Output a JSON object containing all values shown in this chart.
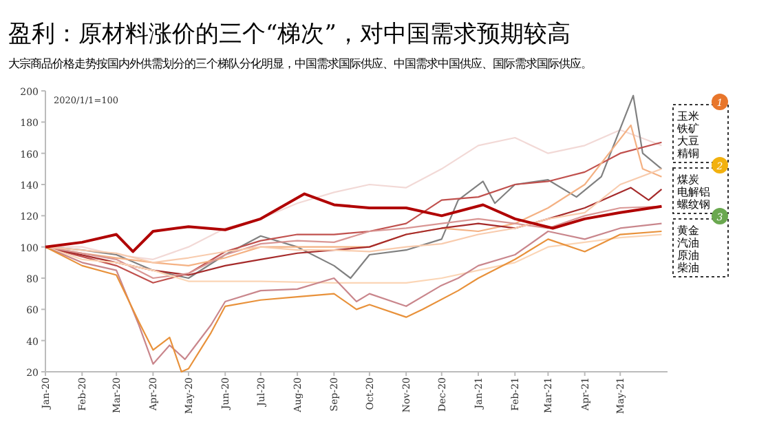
{
  "chart_data": {
    "type": "line",
    "title": "盈利：原材料涨价的三个“梯次”，对中国需求预期较高",
    "subtitle": "大宗商品价格走势按国内外供需划分的三个梯队分化明显，中国需求国际供应、中国需求中国供应、国际需求国际供应。",
    "annotations": [
      "2020/1/1=100",
      "1",
      "玉米",
      "铁矿",
      "大豆",
      "精铜",
      "2",
      "煤炭",
      "电解铝",
      "螺纹钢",
      "3",
      "黄金",
      "汽油",
      "原油",
      "柴油"
    ],
    "xlim": [
      "2020-01-01",
      "2021-06-10"
    ],
    "xticks": [
      {
        "value": "2020-01-01",
        "label": "Jan-20"
      },
      {
        "value": "2020-02-01",
        "label": "Feb-20"
      },
      {
        "value": "2020-03-01",
        "label": "Mar-20"
      },
      {
        "value": "2020-04-01",
        "label": "Apr-20"
      },
      {
        "value": "2020-05-01",
        "label": "May-20"
      },
      {
        "value": "2020-06-01",
        "label": "Jun-20"
      },
      {
        "value": "2020-07-01",
        "label": "Jul-20"
      },
      {
        "value": "2020-08-01",
        "label": "Aug-20"
      },
      {
        "value": "2020-09-01",
        "label": "Sep-20"
      },
      {
        "value": "2020-10-01",
        "label": "Oct-20"
      },
      {
        "value": "2020-11-01",
        "label": "Nov-20"
      },
      {
        "value": "2020-12-01",
        "label": "Dec-20"
      },
      {
        "value": "2021-01-01",
        "label": "Jan-21"
      },
      {
        "value": "2021-02-01",
        "label": "Feb-21"
      },
      {
        "value": "2021-03-01",
        "label": "Mar-21"
      },
      {
        "value": "2021-04-01",
        "label": "Apr-21"
      },
      {
        "value": "2021-05-01",
        "label": "May-21"
      }
    ],
    "ylim": [
      20,
      200
    ],
    "yticks": [
      20,
      40,
      60,
      80,
      100,
      120,
      140,
      160,
      180,
      200
    ],
    "series": [
      {
        "color": "#f2d9d6",
        "x": [
          "2020-01-01",
          "2020-02-01",
          "2020-03-01",
          "2020-04-01",
          "2020-05-01",
          "2020-06-01",
          "2020-07-01",
          "2020-08-01",
          "2020-09-01",
          "2020-10-01",
          "2020-11-01",
          "2020-12-01",
          "2021-01-01",
          "2021-02-01",
          "2021-03-01",
          "2021-04-01",
          "2021-05-01",
          "2021-06-05"
        ],
        "values": [
          100,
          100,
          95,
          92,
          100,
          112,
          118,
          128,
          135,
          140,
          138,
          150,
          165,
          170,
          160,
          165,
          175,
          165
        ]
      },
      {
        "color": "#808080",
        "x": [
          "2020-01-01",
          "2020-02-01",
          "2020-03-01",
          "2020-04-01",
          "2020-05-01",
          "2020-06-01",
          "2020-07-01",
          "2020-08-01",
          "2020-09-01",
          "2020-09-15",
          "2020-10-01",
          "2020-11-01",
          "2020-12-01",
          "2020-12-15",
          "2021-01-05",
          "2021-01-15",
          "2021-02-01",
          "2021-03-01",
          "2021-03-25",
          "2021-04-15",
          "2021-05-12",
          "2021-05-20",
          "2021-06-05"
        ],
        "values": [
          100,
          98,
          95,
          85,
          80,
          95,
          107,
          100,
          88,
          80,
          95,
          98,
          105,
          130,
          142,
          128,
          140,
          143,
          132,
          145,
          197,
          160,
          150
        ]
      },
      {
        "color": "#c0504d",
        "x": [
          "2020-01-01",
          "2020-03-01",
          "2020-04-01",
          "2020-05-01",
          "2020-06-01",
          "2020-07-01",
          "2020-08-01",
          "2020-09-01",
          "2020-10-01",
          "2020-11-01",
          "2020-12-01",
          "2021-01-01",
          "2021-02-01",
          "2021-03-01",
          "2021-04-01",
          "2021-05-01",
          "2021-06-05"
        ],
        "values": [
          100,
          88,
          77,
          83,
          97,
          104,
          108,
          108,
          110,
          115,
          130,
          132,
          140,
          142,
          148,
          160,
          167
        ]
      },
      {
        "color": "#f4b183",
        "x": [
          "2020-01-01",
          "2020-02-01",
          "2020-03-01",
          "2020-04-01",
          "2020-05-01",
          "2020-06-01",
          "2020-07-01",
          "2020-08-01",
          "2020-09-01",
          "2020-10-01",
          "2020-11-01",
          "2020-12-01",
          "2021-01-01",
          "2021-02-01",
          "2021-03-01",
          "2021-04-01",
          "2021-05-10",
          "2021-05-20",
          "2021-06-05"
        ],
        "values": [
          100,
          96,
          93,
          90,
          88,
          93,
          100,
          100,
          100,
          100,
          108,
          112,
          110,
          115,
          125,
          140,
          178,
          150,
          145
        ]
      },
      {
        "color": "#a52a2a",
        "x": [
          "2020-01-01",
          "2020-03-01",
          "2020-04-01",
          "2020-05-01",
          "2020-06-01",
          "2020-07-01",
          "2020-08-01",
          "2020-09-01",
          "2020-10-01",
          "2020-11-01",
          "2020-12-01",
          "2021-01-01",
          "2021-02-01",
          "2021-03-01",
          "2021-04-01",
          "2021-05-10",
          "2021-05-25",
          "2021-06-05"
        ],
        "values": [
          100,
          90,
          85,
          82,
          88,
          92,
          96,
          98,
          100,
          108,
          112,
          115,
          112,
          118,
          125,
          138,
          130,
          137
        ]
      },
      {
        "color": "#d99694",
        "x": [
          "2020-01-01",
          "2020-03-01",
          "2020-04-01",
          "2020-05-01",
          "2020-06-01",
          "2020-07-01",
          "2020-08-01",
          "2020-09-01",
          "2020-10-01",
          "2020-11-01",
          "2020-12-01",
          "2021-01-01",
          "2021-02-01",
          "2021-03-01",
          "2021-04-01",
          "2021-05-01",
          "2021-06-05"
        ],
        "values": [
          100,
          92,
          80,
          83,
          95,
          102,
          104,
          103,
          110,
          112,
          115,
          118,
          115,
          112,
          120,
          125,
          126
        ]
      },
      {
        "color": "#fbd5b5",
        "x": [
          "2020-01-01",
          "2020-02-01",
          "2020-03-01",
          "2020-04-01",
          "2020-05-01",
          "2020-07-01",
          "2020-09-01",
          "2020-11-01",
          "2020-12-01",
          "2021-01-01",
          "2021-02-01",
          "2021-03-01",
          "2021-04-01",
          "2021-05-01",
          "2021-06-05"
        ],
        "values": [
          100,
          92,
          90,
          85,
          78,
          78,
          77,
          77,
          80,
          85,
          90,
          100,
          103,
          106,
          108
        ]
      },
      {
        "color": "#c9868c",
        "x": [
          "2020-01-01",
          "2020-02-01",
          "2020-03-01",
          "2020-03-20",
          "2020-04-01",
          "2020-04-15",
          "2020-04-28",
          "2020-05-05",
          "2020-05-20",
          "2020-06-01",
          "2020-07-01",
          "2020-08-01",
          "2020-09-01",
          "2020-09-20",
          "2020-10-01",
          "2020-11-01",
          "2020-11-30",
          "2020-12-15",
          "2021-01-01",
          "2021-02-01",
          "2021-03-01",
          "2021-04-01",
          "2021-05-01",
          "2021-06-05"
        ],
        "values": [
          100,
          90,
          85,
          50,
          25,
          37,
          28,
          35,
          50,
          65,
          72,
          73,
          80,
          65,
          70,
          62,
          75,
          80,
          88,
          95,
          110,
          105,
          112,
          115
        ]
      },
      {
        "color": "#e8913a",
        "x": [
          "2020-01-01",
          "2020-02-01",
          "2020-03-01",
          "2020-03-20",
          "2020-04-01",
          "2020-04-15",
          "2020-04-25",
          "2020-05-01",
          "2020-05-20",
          "2020-06-01",
          "2020-07-01",
          "2020-08-01",
          "2020-09-01",
          "2020-09-20",
          "2020-10-01",
          "2020-11-01",
          "2020-11-15",
          "2020-12-15",
          "2021-01-01",
          "2021-02-01",
          "2021-03-01",
          "2021-04-01",
          "2021-05-01",
          "2021-06-05"
        ],
        "values": [
          100,
          88,
          82,
          52,
          34,
          42,
          20,
          22,
          45,
          62,
          66,
          68,
          70,
          60,
          63,
          55,
          60,
          72,
          80,
          92,
          105,
          97,
          108,
          110
        ]
      },
      {
        "color": "#f8cbad",
        "x": [
          "2020-01-01",
          "2020-03-01",
          "2020-04-01",
          "2020-05-01",
          "2020-06-01",
          "2020-07-01",
          "2020-08-01",
          "2020-09-01",
          "2020-10-01",
          "2020-11-01",
          "2020-12-01",
          "2021-01-01",
          "2021-02-01",
          "2021-03-01",
          "2021-04-01",
          "2021-05-01",
          "2021-06-05"
        ],
        "values": [
          100,
          96,
          90,
          93,
          97,
          100,
          98,
          98,
          97,
          100,
          102,
          108,
          112,
          118,
          122,
          140,
          150
        ]
      },
      {
        "color": "#b00000",
        "x": [
          "2020-01-01",
          "2020-02-01",
          "2020-03-01",
          "2020-03-15",
          "2020-04-01",
          "2020-05-01",
          "2020-06-01",
          "2020-07-01",
          "2020-08-07",
          "2020-09-01",
          "2020-10-01",
          "2020-11-01",
          "2020-12-01",
          "2021-01-05",
          "2021-02-01",
          "2021-03-05",
          "2021-04-01",
          "2021-05-01",
          "2021-06-05"
        ],
        "values": [
          100,
          103,
          108,
          97,
          110,
          113,
          111,
          118,
          134,
          127,
          125,
          125,
          120,
          127,
          118,
          112,
          118,
          122,
          126
        ]
      }
    ]
  }
}
